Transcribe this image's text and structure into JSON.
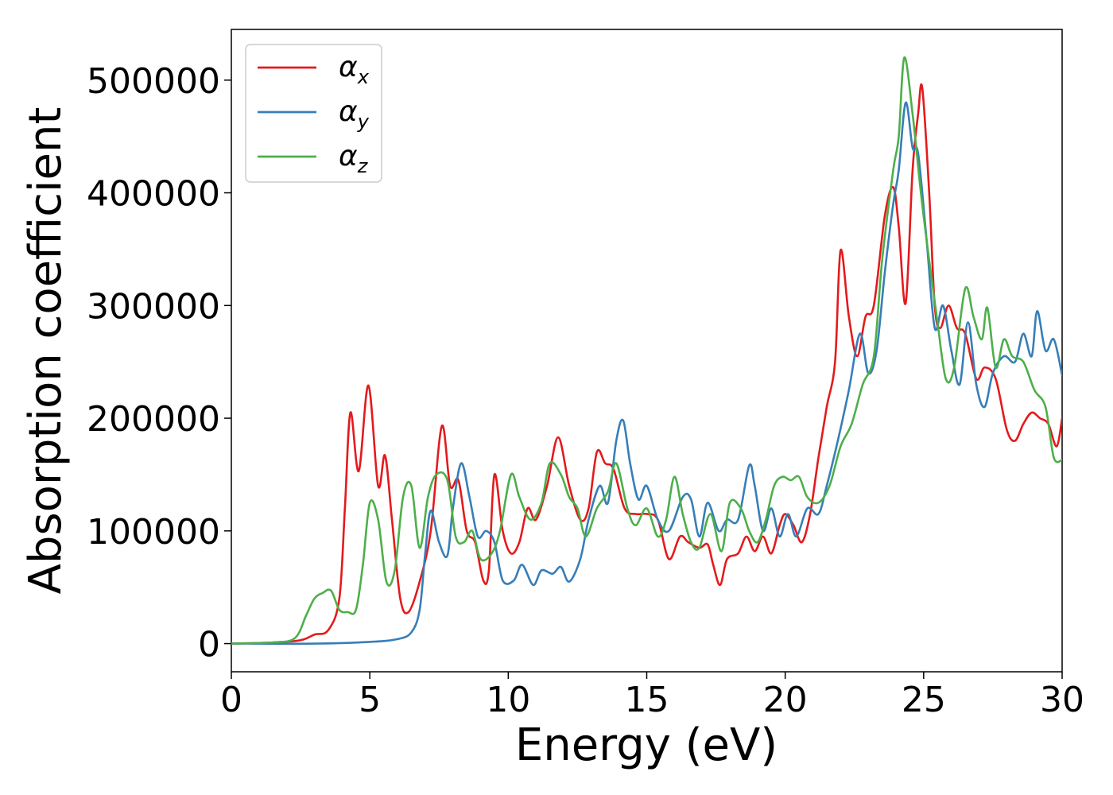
{
  "chart_data": {
    "type": "line",
    "title": "",
    "xlabel": "Energy (eV)",
    "ylabel": "Absorption coefficient",
    "xlim": [
      0,
      30
    ],
    "ylim": [
      -25000,
      545000
    ],
    "xticks": [
      0,
      5,
      10,
      15,
      20,
      25,
      30
    ],
    "yticks": [
      0,
      100000,
      200000,
      300000,
      400000,
      500000
    ],
    "grid": false,
    "legend_position": "top-left",
    "series": [
      {
        "name": "α",
        "subscript": "x",
        "color": "#e41a1c",
        "points": [
          [
            0,
            0
          ],
          [
            1.5,
            1000
          ],
          [
            2.5,
            3000
          ],
          [
            3,
            8000
          ],
          [
            3.5,
            12000
          ],
          [
            3.9,
            40000
          ],
          [
            4.1,
            120000
          ],
          [
            4.3,
            205000
          ],
          [
            4.6,
            153000
          ],
          [
            4.95,
            229000
          ],
          [
            5.3,
            140000
          ],
          [
            5.55,
            167000
          ],
          [
            5.8,
            110000
          ],
          [
            6.1,
            40000
          ],
          [
            6.4,
            28000
          ],
          [
            6.8,
            55000
          ],
          [
            7.2,
            100000
          ],
          [
            7.6,
            193000
          ],
          [
            7.9,
            140000
          ],
          [
            8.2,
            145000
          ],
          [
            8.5,
            100000
          ],
          [
            8.8,
            90000
          ],
          [
            9.1,
            56000
          ],
          [
            9.3,
            65000
          ],
          [
            9.5,
            150000
          ],
          [
            9.8,
            100000
          ],
          [
            10.1,
            80000
          ],
          [
            10.4,
            90000
          ],
          [
            10.7,
            120000
          ],
          [
            11.0,
            110000
          ],
          [
            11.4,
            140000
          ],
          [
            11.8,
            183000
          ],
          [
            12.2,
            140000
          ],
          [
            12.6,
            110000
          ],
          [
            12.9,
            120000
          ],
          [
            13.2,
            170000
          ],
          [
            13.5,
            160000
          ],
          [
            13.8,
            155000
          ],
          [
            14.2,
            120000
          ],
          [
            14.6,
            115000
          ],
          [
            15.0,
            115000
          ],
          [
            15.4,
            110000
          ],
          [
            15.8,
            75000
          ],
          [
            16.2,
            95000
          ],
          [
            16.5,
            90000
          ],
          [
            16.9,
            85000
          ],
          [
            17.2,
            88000
          ],
          [
            17.4,
            70000
          ],
          [
            17.65,
            52000
          ],
          [
            17.9,
            75000
          ],
          [
            18.3,
            80000
          ],
          [
            18.6,
            95000
          ],
          [
            18.9,
            82000
          ],
          [
            19.2,
            95000
          ],
          [
            19.5,
            80000
          ],
          [
            19.8,
            105000
          ],
          [
            20.0,
            115000
          ],
          [
            20.3,
            105000
          ],
          [
            20.6,
            90000
          ],
          [
            20.9,
            115000
          ],
          [
            21.2,
            165000
          ],
          [
            21.5,
            210000
          ],
          [
            21.8,
            250000
          ],
          [
            22.0,
            349000
          ],
          [
            22.3,
            290000
          ],
          [
            22.6,
            255000
          ],
          [
            22.9,
            290000
          ],
          [
            23.2,
            300000
          ],
          [
            23.6,
            380000
          ],
          [
            23.9,
            405000
          ],
          [
            24.1,
            370000
          ],
          [
            24.35,
            302000
          ],
          [
            24.6,
            420000
          ],
          [
            24.8,
            470000
          ],
          [
            24.95,
            493000
          ],
          [
            25.2,
            400000
          ],
          [
            25.4,
            300000
          ],
          [
            25.6,
            280000
          ],
          [
            25.9,
            300000
          ],
          [
            26.2,
            280000
          ],
          [
            26.5,
            275000
          ],
          [
            26.9,
            235000
          ],
          [
            27.2,
            245000
          ],
          [
            27.6,
            235000
          ],
          [
            28.0,
            190000
          ],
          [
            28.3,
            180000
          ],
          [
            28.6,
            195000
          ],
          [
            28.9,
            205000
          ],
          [
            29.2,
            200000
          ],
          [
            29.5,
            195000
          ],
          [
            29.8,
            175000
          ],
          [
            30,
            200000
          ]
        ]
      },
      {
        "name": "α",
        "subscript": "y",
        "color": "#377eb8",
        "points": [
          [
            0,
            0
          ],
          [
            3,
            0
          ],
          [
            5,
            1500
          ],
          [
            6,
            4000
          ],
          [
            6.5,
            10000
          ],
          [
            6.8,
            30000
          ],
          [
            7.0,
            80000
          ],
          [
            7.2,
            118000
          ],
          [
            7.5,
            90000
          ],
          [
            7.8,
            78000
          ],
          [
            8.0,
            120000
          ],
          [
            8.3,
            160000
          ],
          [
            8.6,
            130000
          ],
          [
            8.9,
            95000
          ],
          [
            9.2,
            100000
          ],
          [
            9.5,
            90000
          ],
          [
            9.8,
            56000
          ],
          [
            10.2,
            56000
          ],
          [
            10.5,
            70000
          ],
          [
            10.9,
            52000
          ],
          [
            11.2,
            65000
          ],
          [
            11.6,
            62000
          ],
          [
            11.9,
            68000
          ],
          [
            12.2,
            55000
          ],
          [
            12.6,
            75000
          ],
          [
            12.9,
            110000
          ],
          [
            13.3,
            140000
          ],
          [
            13.6,
            125000
          ],
          [
            13.9,
            180000
          ],
          [
            14.15,
            198000
          ],
          [
            14.4,
            160000
          ],
          [
            14.7,
            128000
          ],
          [
            15.0,
            140000
          ],
          [
            15.4,
            110000
          ],
          [
            15.8,
            100000
          ],
          [
            16.3,
            130000
          ],
          [
            16.6,
            128000
          ],
          [
            16.9,
            95000
          ],
          [
            17.2,
            125000
          ],
          [
            17.6,
            100000
          ],
          [
            17.9,
            110000
          ],
          [
            18.3,
            110000
          ],
          [
            18.7,
            158000
          ],
          [
            18.9,
            140000
          ],
          [
            19.2,
            100000
          ],
          [
            19.5,
            120000
          ],
          [
            19.8,
            95000
          ],
          [
            20.1,
            115000
          ],
          [
            20.4,
            95000
          ],
          [
            20.8,
            120000
          ],
          [
            21.2,
            115000
          ],
          [
            21.5,
            140000
          ],
          [
            21.9,
            180000
          ],
          [
            22.3,
            225000
          ],
          [
            22.7,
            275000
          ],
          [
            23.0,
            240000
          ],
          [
            23.3,
            260000
          ],
          [
            23.6,
            330000
          ],
          [
            23.9,
            390000
          ],
          [
            24.1,
            420000
          ],
          [
            24.35,
            480000
          ],
          [
            24.6,
            440000
          ],
          [
            24.8,
            435000
          ],
          [
            25.1,
            360000
          ],
          [
            25.4,
            280000
          ],
          [
            25.7,
            300000
          ],
          [
            26.0,
            260000
          ],
          [
            26.3,
            230000
          ],
          [
            26.6,
            285000
          ],
          [
            26.9,
            230000
          ],
          [
            27.2,
            210000
          ],
          [
            27.5,
            240000
          ],
          [
            27.9,
            255000
          ],
          [
            28.3,
            250000
          ],
          [
            28.6,
            275000
          ],
          [
            28.9,
            255000
          ],
          [
            29.1,
            295000
          ],
          [
            29.4,
            260000
          ],
          [
            29.7,
            270000
          ],
          [
            30,
            238000
          ]
        ]
      },
      {
        "name": "α",
        "subscript": "z",
        "color": "#4daf4a",
        "points": [
          [
            0,
            0
          ],
          [
            1.5,
            1000
          ],
          [
            2.3,
            5000
          ],
          [
            2.7,
            25000
          ],
          [
            3.0,
            40000
          ],
          [
            3.3,
            45000
          ],
          [
            3.6,
            47000
          ],
          [
            3.9,
            30000
          ],
          [
            4.2,
            28000
          ],
          [
            4.5,
            30000
          ],
          [
            4.75,
            70000
          ],
          [
            5.0,
            125000
          ],
          [
            5.3,
            110000
          ],
          [
            5.6,
            55000
          ],
          [
            5.9,
            65000
          ],
          [
            6.2,
            130000
          ],
          [
            6.5,
            140000
          ],
          [
            6.8,
            85000
          ],
          [
            7.1,
            130000
          ],
          [
            7.4,
            150000
          ],
          [
            7.8,
            145000
          ],
          [
            8.1,
            95000
          ],
          [
            8.4,
            90000
          ],
          [
            8.7,
            100000
          ],
          [
            9.0,
            75000
          ],
          [
            9.4,
            80000
          ],
          [
            9.7,
            100000
          ],
          [
            10.1,
            150000
          ],
          [
            10.4,
            130000
          ],
          [
            10.8,
            110000
          ],
          [
            11.2,
            125000
          ],
          [
            11.5,
            160000
          ],
          [
            11.9,
            150000
          ],
          [
            12.2,
            130000
          ],
          [
            12.5,
            120000
          ],
          [
            12.8,
            95000
          ],
          [
            13.2,
            120000
          ],
          [
            13.6,
            135000
          ],
          [
            13.9,
            160000
          ],
          [
            14.3,
            120000
          ],
          [
            14.6,
            105000
          ],
          [
            15.0,
            120000
          ],
          [
            15.4,
            95000
          ],
          [
            15.7,
            110000
          ],
          [
            16.0,
            148000
          ],
          [
            16.3,
            115000
          ],
          [
            16.6,
            90000
          ],
          [
            16.9,
            85000
          ],
          [
            17.3,
            115000
          ],
          [
            17.7,
            82000
          ],
          [
            18.0,
            125000
          ],
          [
            18.4,
            120000
          ],
          [
            18.7,
            100000
          ],
          [
            19.0,
            90000
          ],
          [
            19.3,
            110000
          ],
          [
            19.6,
            140000
          ],
          [
            19.9,
            148000
          ],
          [
            20.2,
            145000
          ],
          [
            20.5,
            148000
          ],
          [
            20.8,
            130000
          ],
          [
            21.2,
            125000
          ],
          [
            21.6,
            140000
          ],
          [
            22.0,
            175000
          ],
          [
            22.4,
            195000
          ],
          [
            22.8,
            230000
          ],
          [
            23.2,
            255000
          ],
          [
            23.5,
            340000
          ],
          [
            23.9,
            420000
          ],
          [
            24.1,
            450000
          ],
          [
            24.3,
            520000
          ],
          [
            24.6,
            470000
          ],
          [
            24.9,
            400000
          ],
          [
            25.2,
            340000
          ],
          [
            25.5,
            285000
          ],
          [
            25.8,
            235000
          ],
          [
            26.1,
            245000
          ],
          [
            26.5,
            315000
          ],
          [
            26.8,
            290000
          ],
          [
            27.1,
            270000
          ],
          [
            27.3,
            298000
          ],
          [
            27.6,
            245000
          ],
          [
            27.9,
            270000
          ],
          [
            28.2,
            255000
          ],
          [
            28.6,
            250000
          ],
          [
            29.0,
            225000
          ],
          [
            29.4,
            210000
          ],
          [
            29.7,
            165000
          ],
          [
            30,
            163000
          ]
        ]
      }
    ]
  }
}
